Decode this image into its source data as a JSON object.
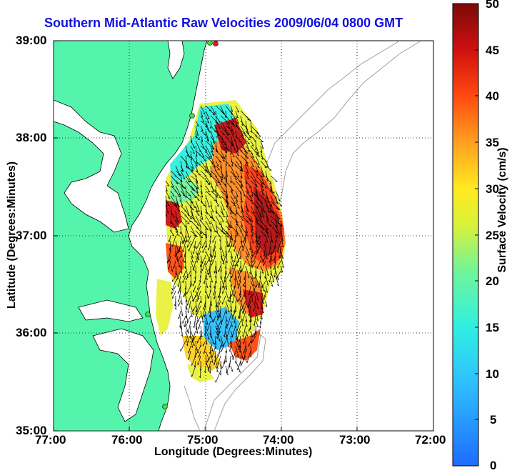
{
  "title": "Southern Mid-Atlantic Raw Velocities 2009/06/04 0800 GMT",
  "x_axis": {
    "label": "Longitude (Degrees:Minutes)",
    "ticks": [
      "77:00",
      "76:00",
      "75:00",
      "74:00",
      "73:00",
      "72:00"
    ]
  },
  "y_axis": {
    "label": "Latitude (Degrees:Minutes)",
    "ticks": [
      "39:00",
      "38:00",
      "37:00",
      "36:00",
      "35:00"
    ]
  },
  "colorbar": {
    "label": "Surface Velocity (cm/s)",
    "ticks": [
      "50",
      "45",
      "40",
      "35",
      "30",
      "25",
      "20",
      "15",
      "10",
      "5",
      "0"
    ],
    "min": 0,
    "max": 50
  },
  "colors": {
    "land": "#55f4ac",
    "title": "#1010e0",
    "arrow": "#000000",
    "bathymetry": "#a0a0a0",
    "station": "#3ce03c",
    "station_alt": "#e02020"
  }
}
